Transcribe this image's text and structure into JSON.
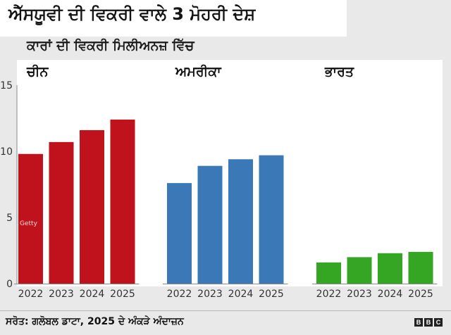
{
  "header": {
    "title": "ਐੱਸਯੂਵੀ ਦੀ ਵਿਕਰੀ ਵਾਲੇ 3 ਮੋਹਰੀ ਦੇਸ਼",
    "subtitle": "ਕਾਰਾਂ ਦੀ ਵਿਕਰੀ ਮਿਲੀਅਨਜ਼ ਵਿੱਚ"
  },
  "chart_data": {
    "type": "bar",
    "panels": [
      {
        "title": "ਚੀਨ",
        "categories": [
          "2022",
          "2023",
          "2024",
          "2025"
        ],
        "values": [
          9.8,
          10.7,
          11.6,
          12.4
        ],
        "color": "#c0121d"
      },
      {
        "title": "ਅਮਰੀਕਾ",
        "categories": [
          "2022",
          "2023",
          "2024",
          "2025"
        ],
        "values": [
          7.6,
          8.9,
          9.4,
          9.7
        ],
        "color": "#3a78b8"
      },
      {
        "title": "ਭਾਰਤ",
        "categories": [
          "2022",
          "2023",
          "2024",
          "2025"
        ],
        "values": [
          1.6,
          2.0,
          2.3,
          2.4
        ],
        "color": "#35a524"
      }
    ],
    "ylim": [
      0,
      15
    ],
    "yticks": [
      0,
      5,
      10,
      15
    ],
    "xlabel": "",
    "ylabel": "",
    "grid": false,
    "annotation": "Getty"
  },
  "footer": {
    "source": "ਸਰੋਤ: ਗਲੋਬਲ ਡਾਟਾ, 2025 ਦੇ ਅੰਕੜੇ ਅੰਦਾਜ਼ਨ",
    "logo_letters": [
      "B",
      "B",
      "C"
    ]
  }
}
